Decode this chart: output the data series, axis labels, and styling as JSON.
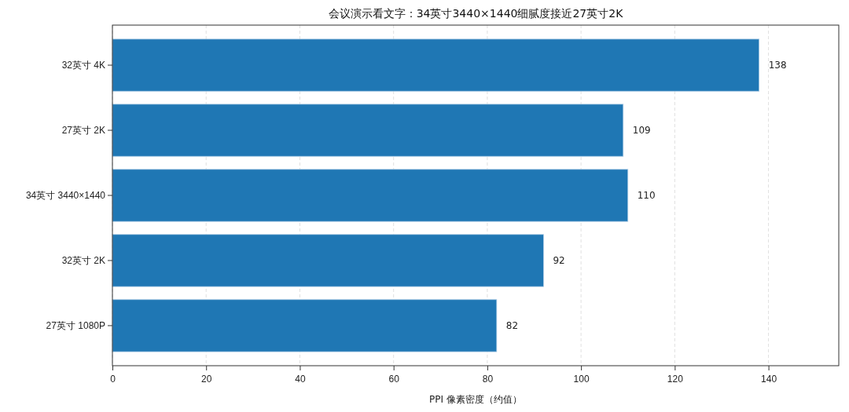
{
  "chart_data": {
    "type": "bar",
    "orientation": "horizontal",
    "title": "会议演示看文字：34英寸3440×1440细腻度接近27英寸2K",
    "xlabel": "PPI 像素密度（约值）",
    "categories": [
      "32英寸 4K",
      "27英寸 2K",
      "34英寸 3440×1440",
      "32英寸 2K",
      "27英寸 1080P"
    ],
    "values": [
      138,
      109,
      110,
      92,
      82
    ],
    "color": "#1f77b4",
    "xlim": [
      0,
      155
    ],
    "xticks": [
      0,
      20,
      40,
      60,
      80,
      100,
      120,
      140
    ],
    "grid": "x",
    "data_labels": true
  }
}
